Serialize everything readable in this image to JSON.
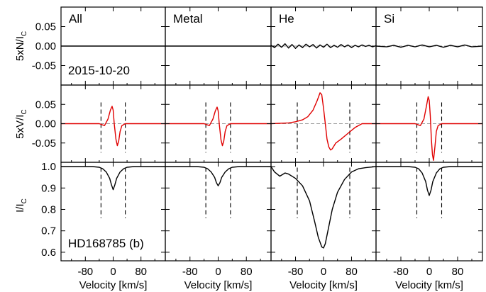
{
  "figure": {
    "columns": [
      "All",
      "Metal",
      "He",
      "Si"
    ],
    "date_label": "2015-10-20",
    "star_label": "HD168785 (b)",
    "row_labels": {
      "N": [
        "5xN/I",
        "C"
      ],
      "V": [
        "5xV/I",
        "C"
      ],
      "I": [
        "I/I",
        "C"
      ]
    },
    "xlabel": "Velocity [km/s]",
    "xticks": [
      "-80",
      "0",
      "80"
    ],
    "yticks": {
      "N": [
        "0.05",
        "0.00",
        "-0.05"
      ],
      "V": [
        "0.05",
        "0.00",
        "-0.05"
      ],
      "I": [
        "1.0",
        "0.9",
        "0.8",
        "0.7",
        "0.6"
      ]
    }
  },
  "chart_data": {
    "type": "line",
    "xlabel": "Velocity [km/s]",
    "xlim": [
      -150,
      150
    ],
    "xticks": [
      -80,
      0,
      80
    ],
    "rows": [
      {
        "key": "N",
        "ylabel": "5xN/I_C",
        "ylim": [
          -0.1,
          0.1
        ],
        "yticks": [
          0.05,
          0.0,
          -0.05
        ]
      },
      {
        "key": "V",
        "ylabel": "5xV/I_C",
        "ylim": [
          -0.1,
          0.1
        ],
        "yticks": [
          0.05,
          0.0,
          -0.05
        ]
      },
      {
        "key": "I",
        "ylabel": "I/I_C",
        "ylim": [
          0.56,
          1.02
        ],
        "yticks": [
          1.0,
          0.9,
          0.8,
          0.7,
          0.6
        ]
      }
    ],
    "colors": {
      "stokes_I": "#000000",
      "stokes_V": "#e00000",
      "null_N": "#000000",
      "reference": "#9a9a9a"
    },
    "panels": [
      {
        "mask": "All",
        "integration_limits": [
          -35,
          35
        ],
        "I": {
          "x": [
            -150,
            -60,
            -40,
            -30,
            -20,
            -10,
            -5,
            0,
            5,
            10,
            20,
            30,
            40,
            60,
            150
          ],
          "y": [
            1.0,
            1.0,
            0.997,
            0.99,
            0.975,
            0.945,
            0.915,
            0.892,
            0.915,
            0.945,
            0.975,
            0.99,
            0.997,
            1.0,
            1.0
          ]
        },
        "V": {
          "x": [
            -150,
            -40,
            -25,
            -15,
            -8,
            -3,
            0,
            3,
            8,
            12,
            16,
            20,
            25,
            35,
            150
          ],
          "y": [
            0.0,
            0.0,
            -0.005,
            0.012,
            0.035,
            0.045,
            0.035,
            0.0,
            -0.04,
            -0.057,
            -0.045,
            -0.02,
            -0.005,
            0.0,
            0.0
          ]
        },
        "N": {
          "x": [
            -150,
            150
          ],
          "y": [
            0.0,
            0.0
          ]
        }
      },
      {
        "mask": "Metal",
        "integration_limits": [
          -35,
          35
        ],
        "I": {
          "x": [
            -150,
            -60,
            -40,
            -30,
            -20,
            -10,
            -5,
            0,
            5,
            10,
            20,
            30,
            40,
            60,
            150
          ],
          "y": [
            1.0,
            1.0,
            0.997,
            0.99,
            0.975,
            0.95,
            0.925,
            0.91,
            0.925,
            0.95,
            0.975,
            0.99,
            0.997,
            1.0,
            1.0
          ]
        },
        "V": {
          "x": [
            -150,
            -40,
            -25,
            -15,
            -8,
            -3,
            0,
            3,
            8,
            12,
            16,
            20,
            25,
            35,
            150
          ],
          "y": [
            0.0,
            0.0,
            -0.005,
            0.012,
            0.033,
            0.043,
            0.033,
            0.0,
            -0.042,
            -0.057,
            -0.045,
            -0.02,
            -0.005,
            0.0,
            0.0
          ]
        },
        "N": {
          "x": [
            -150,
            150
          ],
          "y": [
            0.0,
            0.0
          ]
        }
      },
      {
        "mask": "He",
        "integration_limits": [
          -75,
          75
        ],
        "I": {
          "x": [
            -150,
            -140,
            -125,
            -110,
            -100,
            -80,
            -60,
            -40,
            -25,
            -15,
            -5,
            0,
            5,
            15,
            25,
            40,
            60,
            80,
            100,
            120,
            150
          ],
          "y": [
            1.0,
            0.975,
            0.955,
            0.97,
            0.965,
            0.945,
            0.91,
            0.84,
            0.74,
            0.67,
            0.625,
            0.62,
            0.64,
            0.72,
            0.8,
            0.88,
            0.94,
            0.975,
            0.99,
            0.995,
            1.0
          ]
        },
        "V": {
          "x": [
            -150,
            -100,
            -80,
            -60,
            -45,
            -30,
            -18,
            -10,
            -5,
            0,
            5,
            10,
            15,
            20,
            25,
            35,
            50,
            70,
            90,
            110,
            150
          ],
          "y": [
            0.0,
            0.002,
            0.005,
            0.01,
            0.018,
            0.035,
            0.06,
            0.08,
            0.075,
            0.04,
            0.0,
            -0.04,
            -0.06,
            -0.068,
            -0.065,
            -0.05,
            -0.04,
            -0.025,
            -0.01,
            0.0,
            0.0
          ]
        },
        "N": {
          "x": [
            -150,
            -140,
            -130,
            -120,
            -110,
            -100,
            -90,
            -80,
            -70,
            -60,
            -50,
            -40,
            -30,
            -20,
            -10,
            0,
            10,
            20,
            30,
            40,
            50,
            60,
            70,
            80,
            90,
            100,
            110,
            120,
            130,
            140,
            150
          ],
          "y": [
            0.002,
            -0.004,
            0.005,
            -0.003,
            0.006,
            -0.005,
            0.004,
            -0.006,
            0.003,
            -0.004,
            0.005,
            -0.002,
            0.004,
            -0.005,
            0.003,
            -0.003,
            0.005,
            -0.004,
            0.002,
            -0.003,
            0.004,
            -0.002,
            0.003,
            -0.004,
            0.002,
            -0.002,
            0.003,
            -0.001,
            0.002,
            -0.002,
            0.001
          ]
        }
      },
      {
        "mask": "Si",
        "integration_limits": [
          -35,
          35
        ],
        "I": {
          "x": [
            -150,
            -60,
            -40,
            -30,
            -20,
            -10,
            -5,
            0,
            5,
            10,
            20,
            30,
            40,
            60,
            150
          ],
          "y": [
            1.0,
            1.0,
            0.997,
            0.99,
            0.97,
            0.93,
            0.89,
            0.865,
            0.89,
            0.93,
            0.97,
            0.99,
            0.997,
            1.0,
            1.0
          ]
        },
        "V": {
          "x": [
            -150,
            -40,
            -25,
            -15,
            -8,
            -3,
            0,
            3,
            6,
            9,
            12,
            16,
            20,
            25,
            35,
            150
          ],
          "y": [
            0.0,
            0.0,
            -0.005,
            0.012,
            0.045,
            0.07,
            0.06,
            0.02,
            -0.04,
            -0.08,
            -0.095,
            -0.06,
            -0.02,
            -0.005,
            0.0,
            0.0
          ]
        },
        "N": {
          "x": [
            -150,
            -120,
            -100,
            -80,
            -60,
            -40,
            -20,
            0,
            20,
            40,
            60,
            80,
            100,
            120,
            150
          ],
          "y": [
            0.0,
            -0.002,
            0.002,
            -0.003,
            0.002,
            -0.002,
            0.003,
            -0.002,
            0.002,
            -0.003,
            0.002,
            -0.002,
            0.003,
            -0.002,
            0.0
          ]
        }
      }
    ]
  }
}
